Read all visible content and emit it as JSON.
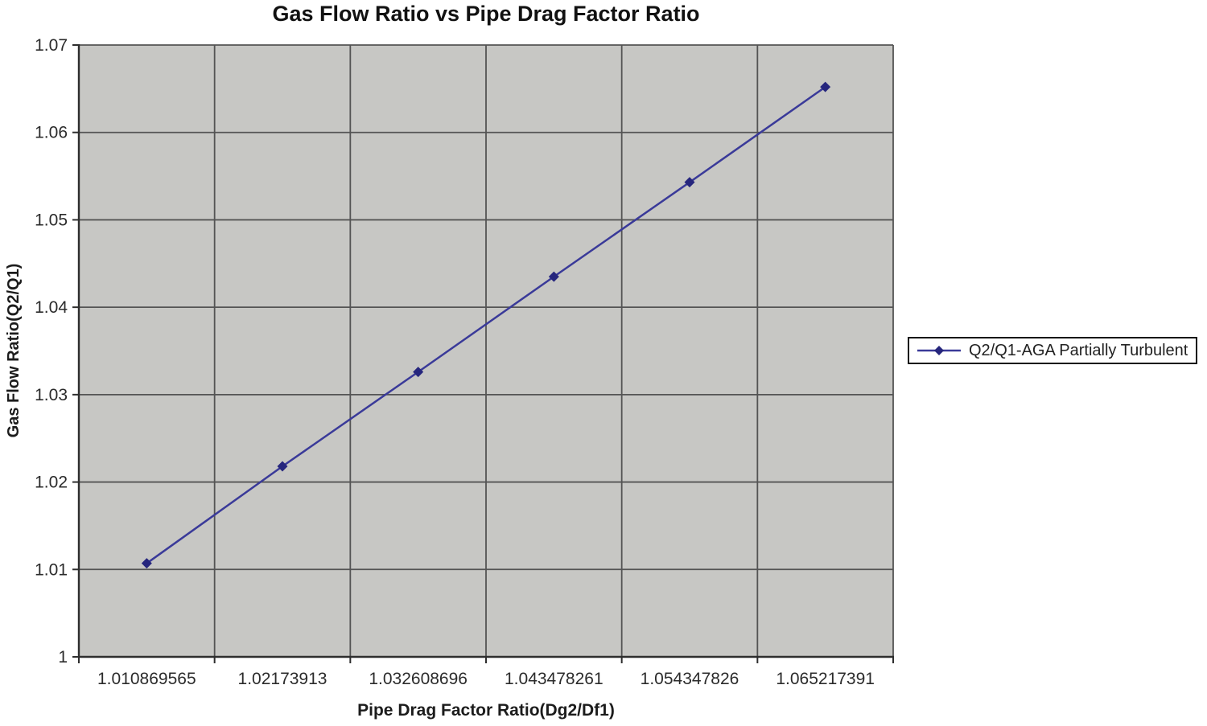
{
  "chart_data": {
    "type": "line",
    "title": "Gas Flow Ratio vs Pipe Drag Factor Ratio",
    "xlabel": "Pipe Drag Factor Ratio(Dg2/Df1)",
    "ylabel": "Gas Flow Ratio(Q2/Q1)",
    "categories": [
      "1.010869565",
      "1.02173913",
      "1.032608696",
      "1.043478261",
      "1.054347826",
      "1.065217391"
    ],
    "series": [
      {
        "name": "Q2/Q1-AGA Partially Turbulent",
        "values": [
          1.0107,
          1.0218,
          1.0326,
          1.0435,
          1.0543,
          1.0652
        ],
        "color": "#3a3a99",
        "marker": "diamond",
        "marker_color": "#26267d"
      }
    ],
    "y_ticks": [
      "1",
      "1.01",
      "1.02",
      "1.03",
      "1.04",
      "1.05",
      "1.06",
      "1.07"
    ],
    "ylim": [
      1.0,
      1.07
    ],
    "grid": true,
    "legend_position": "right",
    "plot_bg": "#c7c7c4",
    "gridline_color": "#545454",
    "axis_color": "#2e2e2e",
    "tick_label_color": "#2b2b2b"
  }
}
